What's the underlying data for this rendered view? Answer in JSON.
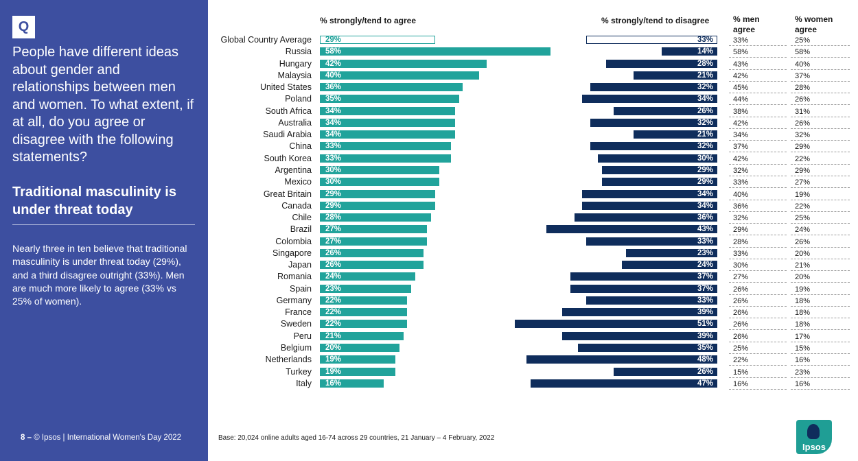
{
  "sidebar": {
    "badge": "Q",
    "question": "People have different ideas about gender and relationships between men and women. To what extent, if at all, do you agree or disagree  with the following statements?",
    "statement": "Traditional masculinity is under threat today",
    "summary": "Nearly three in ten believe that traditional masculinity is under threat today (29%), and a third disagree outright (33%). Men are much more likely to agree (33% vs 25% of women).",
    "footer_page": "8 –",
    "footer_text": "© Ipsos | International Women's Day 2022"
  },
  "base_note": "Base: 20,024 online adults aged 16-74 across 29 countries, 21 January – 4 February, 2022",
  "logo": {
    "text": "Ipsos",
    "color": "#1f9e95"
  },
  "colors": {
    "agree": "#21a39b",
    "disagree": "#0f2d5c",
    "sidebar": "#3d4fa0"
  },
  "chart_data": {
    "type": "bar",
    "headers": {
      "agree": "% strongly/tend to agree",
      "disagree": "% strongly/tend to disagree",
      "men": "% men agree",
      "women": "% women agree"
    },
    "categories": [
      "Global Country Average",
      "Russia",
      "Hungary",
      "Malaysia",
      "United States",
      "Poland",
      "South Africa",
      "Australia",
      "Saudi Arabia",
      "China",
      "South Korea",
      "Argentina",
      "Mexico",
      "Great Britain",
      "Canada",
      "Chile",
      "Brazil",
      "Colombia",
      "Singapore",
      "Japan",
      "Romania",
      "Spain",
      "Germany",
      "France",
      "Sweden",
      "Peru",
      "Belgium",
      "Netherlands",
      "Turkey",
      "Italy"
    ],
    "series": [
      {
        "key": "agree",
        "values": [
          29,
          58,
          42,
          40,
          36,
          35,
          34,
          34,
          34,
          33,
          33,
          30,
          30,
          29,
          29,
          28,
          27,
          27,
          26,
          26,
          24,
          23,
          22,
          22,
          22,
          21,
          20,
          19,
          19,
          16
        ]
      },
      {
        "key": "disagree",
        "values": [
          33,
          14,
          28,
          21,
          32,
          34,
          26,
          32,
          21,
          32,
          30,
          29,
          29,
          34,
          34,
          36,
          43,
          33,
          23,
          24,
          37,
          37,
          33,
          39,
          51,
          39,
          35,
          48,
          26,
          47
        ]
      },
      {
        "key": "men",
        "values": [
          33,
          58,
          43,
          42,
          45,
          44,
          38,
          42,
          34,
          37,
          42,
          32,
          33,
          40,
          36,
          32,
          29,
          28,
          33,
          30,
          27,
          26,
          26,
          26,
          26,
          26,
          25,
          22,
          15,
          16
        ]
      },
      {
        "key": "women",
        "values": [
          25,
          58,
          40,
          37,
          28,
          26,
          31,
          26,
          32,
          29,
          22,
          29,
          27,
          19,
          22,
          25,
          24,
          26,
          20,
          21,
          20,
          19,
          18,
          18,
          18,
          17,
          15,
          16,
          23,
          16
        ]
      }
    ],
    "value_suffix": "%"
  }
}
